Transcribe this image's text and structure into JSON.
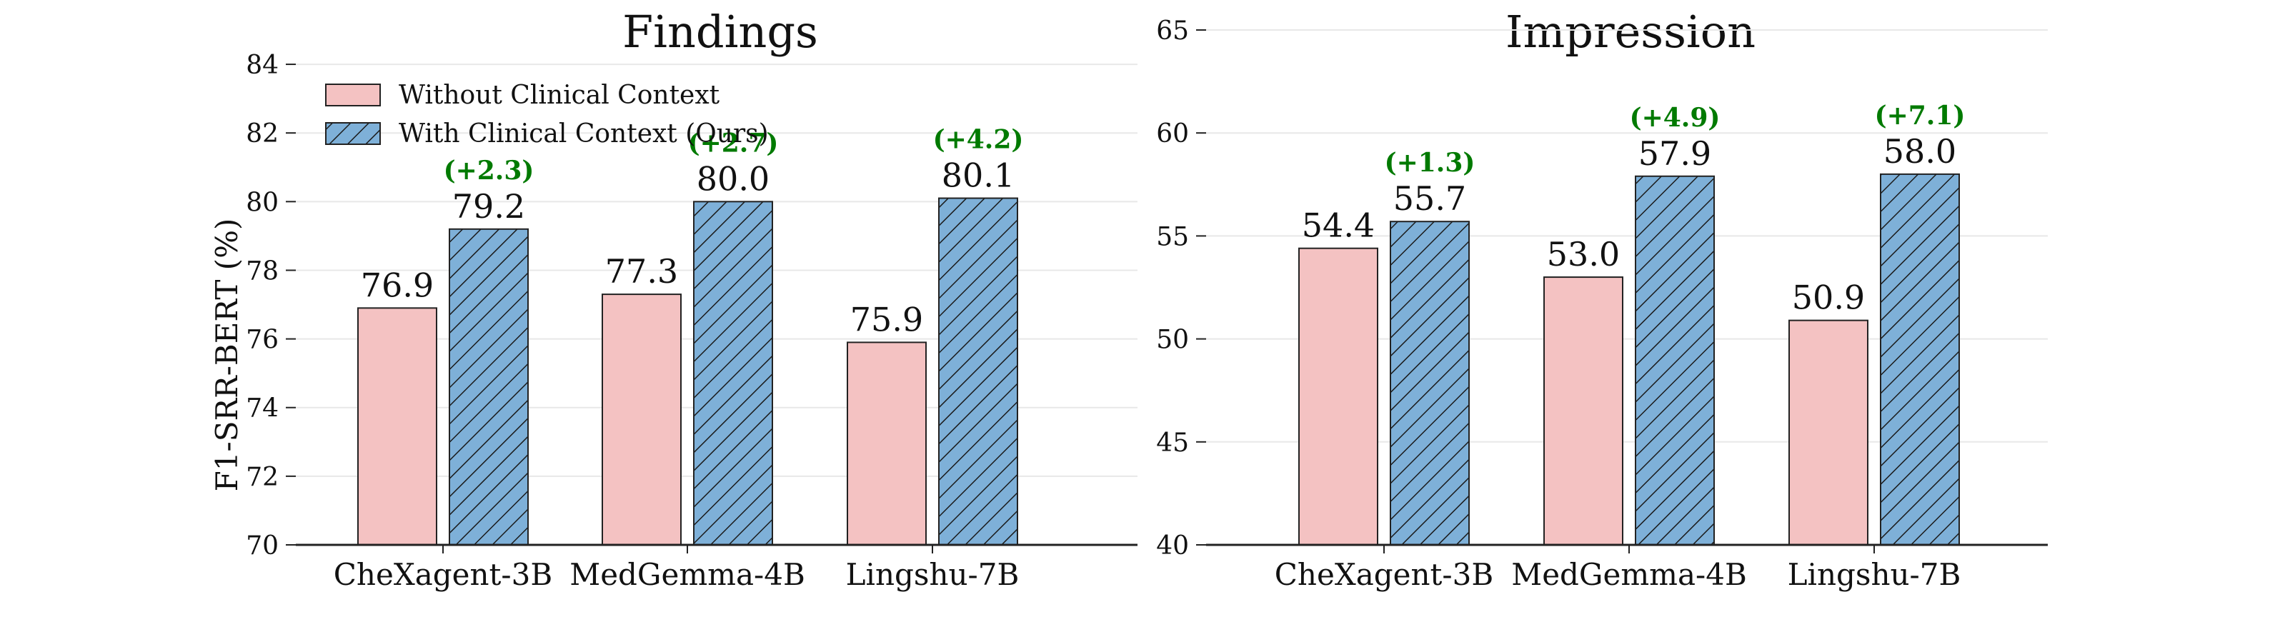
{
  "colors": {
    "without": "#f4c2c2",
    "with": "#7eb0d8",
    "delta": "#007a00",
    "grid": "#e8e8e8",
    "axis": "#222222"
  },
  "legend": {
    "without": "Without Clinical Context",
    "with": "With Clinical Context (Ours)"
  },
  "chart_data": [
    {
      "type": "bar",
      "title": "Findings",
      "ylabel": "F1-SRR-BERT (%)",
      "xlabel": "",
      "ylim": [
        70,
        85
      ],
      "yticks": [
        "70",
        "72",
        "74",
        "76",
        "78",
        "80",
        "82",
        "84"
      ],
      "categories": [
        "CheXagent-3B",
        "MedGemma-4B",
        "Lingshu-7B"
      ],
      "series": [
        {
          "name": "Without Clinical Context",
          "values": [
            76.9,
            77.3,
            75.9
          ],
          "labels": [
            "76.9",
            "77.3",
            "75.9"
          ]
        },
        {
          "name": "With Clinical Context (Ours)",
          "values": [
            79.2,
            80.0,
            80.1
          ],
          "labels": [
            "79.2",
            "80.0",
            "80.1"
          ]
        }
      ],
      "deltas": [
        "(+2.3)",
        "(+2.7)",
        "(+4.2)"
      ],
      "grid": true,
      "legend_position": "top-left"
    },
    {
      "type": "bar",
      "title": "Impression",
      "ylabel": "",
      "xlabel": "",
      "ylim": [
        40,
        65
      ],
      "yticks": [
        "40",
        "45",
        "50",
        "55",
        "60",
        "65"
      ],
      "categories": [
        "CheXagent-3B",
        "MedGemma-4B",
        "Lingshu-7B"
      ],
      "series": [
        {
          "name": "Without Clinical Context",
          "values": [
            54.4,
            53.0,
            50.9
          ],
          "labels": [
            "54.4",
            "53.0",
            "50.9"
          ]
        },
        {
          "name": "With Clinical Context (Ours)",
          "values": [
            55.7,
            57.9,
            58.0
          ],
          "labels": [
            "55.7",
            "57.9",
            "58.0"
          ]
        }
      ],
      "deltas": [
        "(+1.3)",
        "(+4.9)",
        "(+7.1)"
      ],
      "grid": true,
      "legend_position": "none"
    }
  ]
}
